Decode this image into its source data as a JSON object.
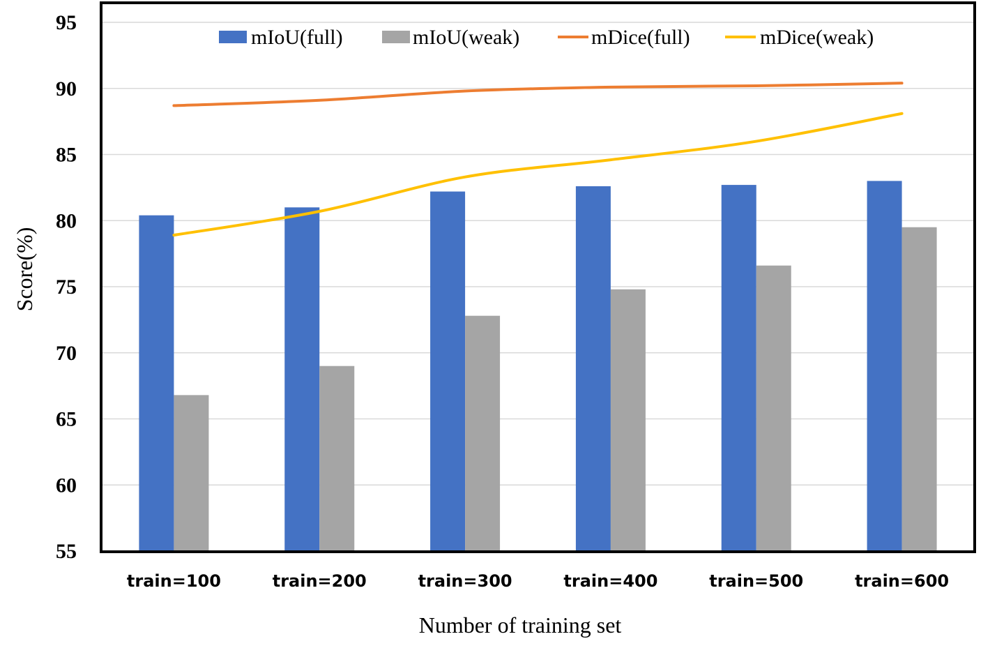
{
  "chart_data": {
    "type": "bar",
    "categories": [
      "train=100",
      "train=200",
      "train=300",
      "train=400",
      "train=500",
      "train=600"
    ],
    "xlabel": "Number of training set",
    "ylabel": "Score(%)",
    "ylim": [
      55,
      95
    ],
    "yticks": [
      55,
      60,
      65,
      70,
      75,
      80,
      85,
      90,
      95
    ],
    "grid": true,
    "legend_position": "top",
    "series": [
      {
        "name": "mIoU(full)",
        "kind": "bar",
        "color": "#4472C4",
        "values": [
          80.4,
          81.0,
          82.2,
          82.6,
          82.7,
          83.0
        ]
      },
      {
        "name": "mIoU(weak)",
        "kind": "bar",
        "color": "#A5A5A5",
        "values": [
          66.8,
          69.0,
          72.8,
          74.8,
          76.6,
          79.5
        ]
      },
      {
        "name": "mDice(full)",
        "kind": "line",
        "color": "#ED7D31",
        "values": [
          88.7,
          89.1,
          89.8,
          90.1,
          90.2,
          90.4
        ]
      },
      {
        "name": "mDice(weak)",
        "kind": "line",
        "color": "#FFC000",
        "values": [
          78.9,
          80.7,
          83.3,
          84.6,
          86.0,
          88.1
        ]
      }
    ]
  }
}
